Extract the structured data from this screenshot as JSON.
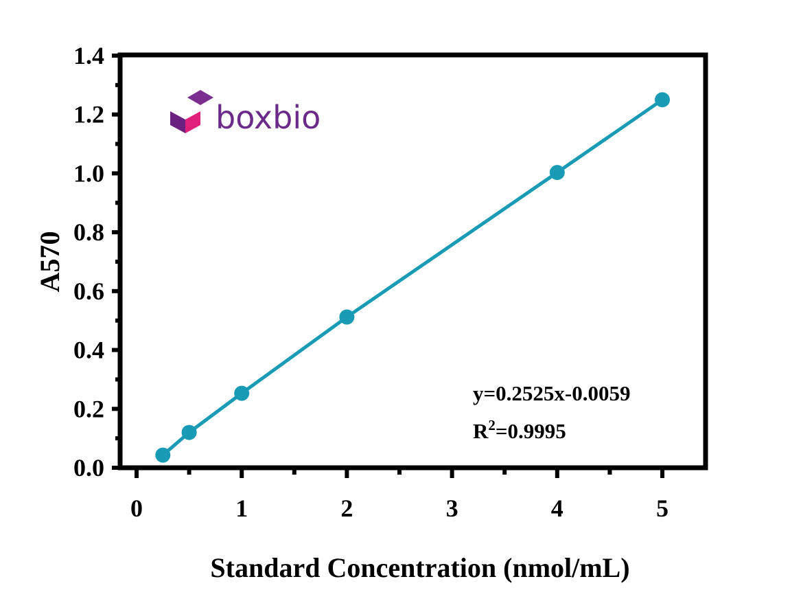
{
  "chart_data": {
    "type": "line",
    "title": "",
    "xlabel": "Standard Concentration (nmol/mL)",
    "ylabel": "A570",
    "xlim": [
      0,
      5.4
    ],
    "ylim": [
      0,
      1.4
    ],
    "x_ticks": [
      "0",
      "1",
      "2",
      "3",
      "4",
      "5"
    ],
    "y_ticks": [
      "0.0",
      "0.2",
      "0.4",
      "0.6",
      "0.8",
      "1.0",
      "1.2",
      "1.4"
    ],
    "grid": false,
    "legend": "none",
    "series": [
      {
        "x": [
          0.25,
          0.5,
          1,
          2,
          4,
          5
        ],
        "y": [
          0.043,
          0.12,
          0.253,
          0.512,
          1.003,
          1.25
        ],
        "color": "#1a9bb5"
      }
    ],
    "fit": {
      "slope": 0.2525,
      "intercept": -0.0059
    },
    "annotations": {
      "equation": "y=0.2525x-0.0059",
      "r2_prefix": "R",
      "r2_sup": "2",
      "r2_value": "=0.9995"
    }
  },
  "logo": {
    "text": "boxbio",
    "text_color": "#6b2a8a",
    "cube_top_color": "#7b2d90",
    "cube_left_color": "#6a2280",
    "cube_right_color": "#e0207a"
  }
}
